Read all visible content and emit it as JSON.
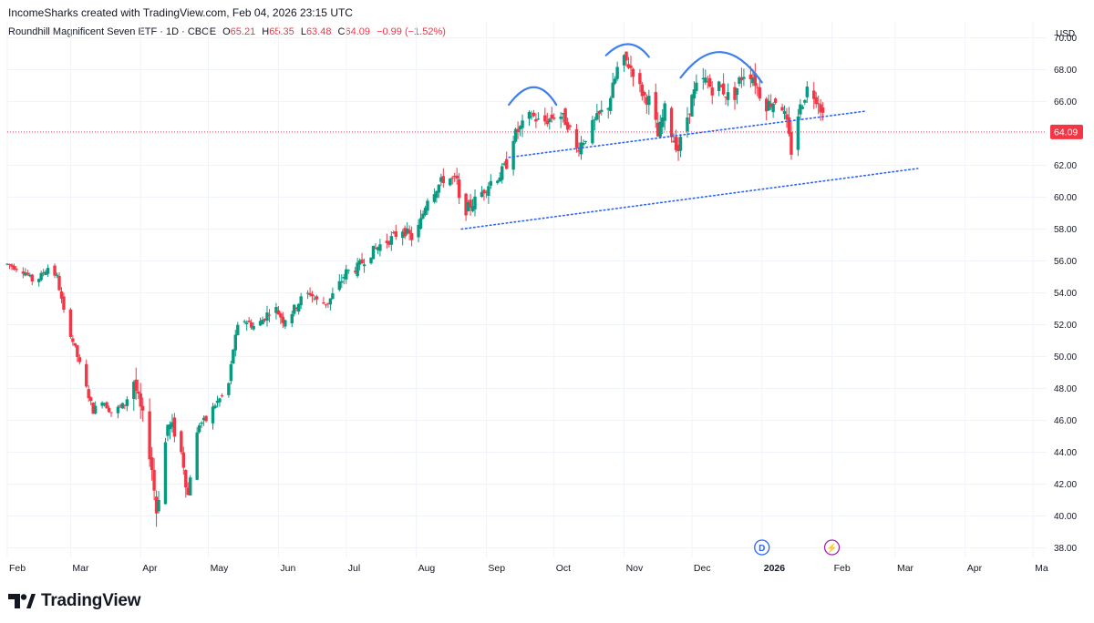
{
  "header": {
    "attribution": "IncomeSharks created with TradingView.com, Feb 04, 2026 23:15 UTC"
  },
  "legend": {
    "symbol": "Roundhill Magnificent Seven ETF · 1D · CBOE",
    "open_label": "O",
    "open": "65.21",
    "high_label": "H",
    "high": "65.35",
    "low_label": "L",
    "low": "63.48",
    "close_label": "C",
    "close": "64.09",
    "change": "−0.99 (−1.52%)"
  },
  "footer": {
    "brand": "TradingView"
  },
  "colors": {
    "up": "#089981",
    "down": "#f23645",
    "trendline": "#2962ff",
    "pattern_arc": "#3d7ff0",
    "grid": "#f0f3fa",
    "axis_text": "#131722"
  },
  "chart_data": {
    "type": "candlestick",
    "currency": "USD",
    "ylim": [
      37.4,
      71.0
    ],
    "y_ticks": [
      "38.00",
      "40.00",
      "42.00",
      "44.00",
      "46.00",
      "48.00",
      "50.00",
      "52.00",
      "54.00",
      "56.00",
      "58.00",
      "60.00",
      "62.00",
      "64.00",
      "66.00",
      "68.00",
      "70.00"
    ],
    "x_ticks": [
      {
        "label": "Feb",
        "day": 0
      },
      {
        "label": "Mar",
        "day": 28
      },
      {
        "label": "Apr",
        "day": 59
      },
      {
        "label": "May",
        "day": 89
      },
      {
        "label": "Jun",
        "day": 120
      },
      {
        "label": "Jul",
        "day": 150
      },
      {
        "label": "Aug",
        "day": 181
      },
      {
        "label": "Sep",
        "day": 212
      },
      {
        "label": "Oct",
        "day": 242
      },
      {
        "label": "Nov",
        "day": 273
      },
      {
        "label": "Dec",
        "day": 303
      },
      {
        "label": "2026",
        "day": 334,
        "bold": true
      },
      {
        "label": "Feb",
        "day": 365
      },
      {
        "label": "Mar",
        "day": 393
      },
      {
        "label": "Apr",
        "day": 424
      },
      {
        "label": "Ma",
        "day": 454
      }
    ],
    "last_price": "64.09",
    "last_value": 64.09,
    "path_anchors": [
      [
        0,
        55.8
      ],
      [
        8,
        55.3
      ],
      [
        12,
        54.6
      ],
      [
        18,
        55.6
      ],
      [
        22,
        55.0
      ],
      [
        25,
        52.8
      ],
      [
        30,
        50.5
      ],
      [
        35,
        48.0
      ],
      [
        38,
        46.6
      ],
      [
        42,
        47.3
      ],
      [
        46,
        46.5
      ],
      [
        52,
        47.0
      ],
      [
        56,
        48.5
      ],
      [
        58,
        47.2
      ],
      [
        62,
        45.0
      ],
      [
        64,
        43.0
      ],
      [
        66,
        40.3
      ],
      [
        69,
        43.5
      ],
      [
        71,
        45.7
      ],
      [
        75,
        45.2
      ],
      [
        78,
        43.3
      ],
      [
        80,
        41.3
      ],
      [
        82,
        43.8
      ],
      [
        85,
        45.8
      ],
      [
        88,
        46.0
      ],
      [
        92,
        47.0
      ],
      [
        95,
        47.5
      ],
      [
        98,
        48.3
      ],
      [
        100,
        50.5
      ],
      [
        102,
        51.8
      ],
      [
        105,
        52.3
      ],
      [
        110,
        51.8
      ],
      [
        114,
        52.5
      ],
      [
        118,
        53.2
      ],
      [
        122,
        52.3
      ],
      [
        126,
        52.8
      ],
      [
        130,
        53.6
      ],
      [
        134,
        54.0
      ],
      [
        138,
        53.3
      ],
      [
        142,
        53.4
      ],
      [
        146,
        54.3
      ],
      [
        150,
        55.3
      ],
      [
        155,
        55.6
      ],
      [
        160,
        56.4
      ],
      [
        165,
        57.0
      ],
      [
        170,
        57.4
      ],
      [
        175,
        58.0
      ],
      [
        180,
        57.3
      ],
      [
        183,
        58.5
      ],
      [
        186,
        60.0
      ],
      [
        190,
        60.6
      ],
      [
        194,
        61.3
      ],
      [
        199,
        61.0
      ],
      [
        201,
        58.4
      ],
      [
        203,
        59.2
      ],
      [
        207,
        59.8
      ],
      [
        210,
        60.3
      ],
      [
        214,
        61.0
      ],
      [
        218,
        61.4
      ],
      [
        222,
        62.3
      ],
      [
        224,
        63.8
      ],
      [
        228,
        64.5
      ],
      [
        232,
        65.2
      ],
      [
        236,
        64.6
      ],
      [
        240,
        64.9
      ],
      [
        244,
        65.3
      ],
      [
        248,
        64.6
      ],
      [
        252,
        63.0
      ],
      [
        256,
        63.8
      ],
      [
        260,
        64.7
      ],
      [
        263,
        65.3
      ],
      [
        266,
        65.8
      ],
      [
        269,
        67.4
      ],
      [
        271,
        68.7
      ],
      [
        274,
        68.5
      ],
      [
        277,
        67.9
      ],
      [
        279,
        67.1
      ],
      [
        282,
        66.3
      ],
      [
        285,
        66.0
      ],
      [
        288,
        63.8
      ],
      [
        291,
        65.5
      ],
      [
        294,
        64.0
      ],
      [
        297,
        63.0
      ],
      [
        300,
        64.5
      ],
      [
        303,
        66.2
      ],
      [
        306,
        67.2
      ],
      [
        309,
        67.3
      ],
      [
        312,
        66.8
      ],
      [
        315,
        67.0
      ],
      [
        318,
        66.5
      ],
      [
        321,
        66.0
      ],
      [
        324,
        67.3
      ],
      [
        327,
        68.0
      ],
      [
        330,
        67.6
      ],
      [
        333,
        66.5
      ],
      [
        336,
        65.8
      ],
      [
        339,
        66.0
      ],
      [
        342,
        66.3
      ],
      [
        345,
        64.5
      ],
      [
        347,
        62.9
      ],
      [
        350,
        65.2
      ],
      [
        354,
        66.8
      ],
      [
        356,
        66.6
      ],
      [
        359,
        66.1
      ],
      [
        361,
        65.2
      ],
      [
        362,
        64.09
      ]
    ],
    "trendlines": [
      {
        "name": "upper",
        "from": [
          222,
          62.5
        ],
        "to": [
          380,
          65.4
        ]
      },
      {
        "name": "lower",
        "from": [
          201,
          58.0
        ],
        "to": [
          403,
          61.8
        ]
      }
    ],
    "pattern_arcs": [
      {
        "name": "left-shoulder",
        "from": [
          222,
          65.8
        ],
        "peak": [
          233,
          66.9
        ],
        "to": [
          243,
          65.8
        ]
      },
      {
        "name": "head",
        "from": [
          265,
          68.9
        ],
        "peak": [
          275,
          69.6
        ],
        "to": [
          284,
          68.8
        ]
      },
      {
        "name": "right-shoulder",
        "from": [
          298,
          67.5
        ],
        "peak": [
          316,
          69.1
        ],
        "to": [
          334,
          67.2
        ]
      }
    ],
    "event_markers": [
      {
        "name": "dividend-marker",
        "label": "D",
        "day": 334,
        "color": "#2962ff"
      },
      {
        "name": "earnings-marker",
        "label": "⚡",
        "day": 365,
        "color": "#9c27b0"
      }
    ]
  }
}
